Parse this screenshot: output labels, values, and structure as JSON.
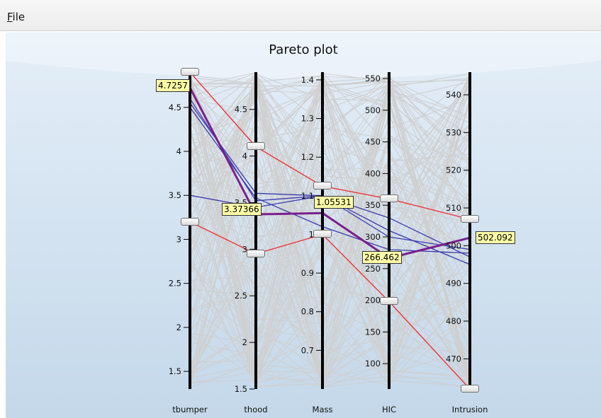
{
  "menu": {
    "file_label": "File"
  },
  "chart_data": {
    "type": "parallel-coordinates",
    "title": "Pareto plot",
    "axes": [
      {
        "name": "tbumper",
        "range": [
          1.3,
          4.9
        ],
        "ticks": [
          1.5,
          2,
          2.5,
          3,
          3.5,
          4,
          4.5
        ],
        "tick_labels": [
          "1.5",
          "2",
          "2.5",
          "3",
          "3.5",
          "4",
          "4.5"
        ]
      },
      {
        "name": "thood",
        "range": [
          1.5,
          4.9
        ],
        "ticks": [
          1.5,
          2,
          2.5,
          3,
          3.5,
          4,
          4.5
        ],
        "tick_labels": [
          "1.5",
          "2",
          "2.5",
          "3",
          "3.5",
          "4",
          "4.5"
        ]
      },
      {
        "name": "Mass",
        "range": [
          0.6,
          1.42
        ],
        "ticks": [
          0.7,
          0.8,
          0.9,
          1,
          1.1,
          1.2,
          1.3,
          1.4
        ],
        "tick_labels": [
          "0.7",
          "0.8",
          "0.9",
          "1",
          "1.1",
          "1.2",
          "1.3",
          "1.4"
        ]
      },
      {
        "name": "HIC",
        "range": [
          60,
          560
        ],
        "ticks": [
          100,
          150,
          200,
          250,
          300,
          350,
          400,
          450,
          500,
          550
        ],
        "tick_labels": [
          "100",
          "150",
          "200",
          "250",
          "300",
          "350",
          "400",
          "450",
          "500",
          "550"
        ]
      },
      {
        "name": "Intrusion",
        "range": [
          462,
          546
        ],
        "ticks": [
          470,
          480,
          490,
          500,
          510,
          520,
          530,
          540
        ],
        "tick_labels": [
          "470",
          "480",
          "490",
          "500",
          "510",
          "520",
          "530",
          "540"
        ]
      }
    ],
    "selection_bounds": [
      {
        "axis": "tbumper",
        "low": 3.2,
        "high": 4.9
      },
      {
        "axis": "thood",
        "low": 2.95,
        "high": 4.1
      },
      {
        "axis": "Mass",
        "low": 1.0,
        "high": 1.125
      },
      {
        "axis": "HIC",
        "low": 198,
        "high": 360
      },
      {
        "axis": "Intrusion",
        "low": 462,
        "high": 507
      }
    ],
    "highlighted_point": {
      "values": [
        4.7257,
        3.37366,
        1.05531,
        266.462,
        502.092
      ],
      "labels": [
        "4.7257",
        "3.37366",
        "1.05531",
        "266.462",
        "502.092"
      ]
    },
    "bound_lines": [
      {
        "values": [
          4.9,
          4.1,
          1.125,
          360,
          507
        ]
      },
      {
        "values": [
          3.2,
          2.95,
          1.0,
          198,
          462
        ]
      }
    ],
    "selected_lines": [
      {
        "values": [
          4.55,
          3.6,
          1.1,
          330,
          497
        ]
      },
      {
        "values": [
          3.5,
          3.45,
          1.1,
          310,
          495
        ]
      },
      {
        "values": [
          4.5,
          3.55,
          1.02,
          280,
          498
        ]
      },
      {
        "values": [
          4.6,
          3.52,
          1.1,
          300,
          499
        ]
      }
    ],
    "colors": {
      "background_top": "#e4eef8",
      "background_bottom": "#c4d8ea",
      "axis": "#000000",
      "context_line": "#cfcfcf",
      "bound_line": "#ee3333",
      "selected_line": "#3b3bb0",
      "highlight_line": "#7a1f8e",
      "label_bg": "#ffffa8"
    }
  }
}
